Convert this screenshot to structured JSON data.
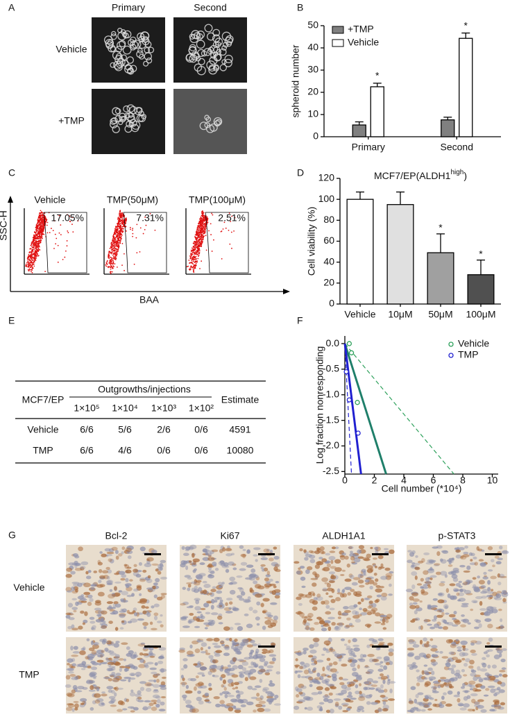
{
  "panel_labels": [
    "A",
    "B",
    "C",
    "D",
    "E",
    "F",
    "G"
  ],
  "spheroid_images": {
    "columns": [
      "Primary",
      "Second"
    ],
    "rows": [
      "Vehicle",
      "+TMP"
    ]
  },
  "flow_cytometry": {
    "plots": [
      {
        "title": "Vehicle",
        "gate": "17.05%"
      },
      {
        "title": "TMP(50μM)",
        "gate": "7.31%"
      },
      {
        "title": "TMP(100μM)",
        "gate": "2.51%"
      }
    ],
    "y_label": "SSC-H",
    "x_label": "BAA"
  },
  "table": {
    "header": [
      "MCF7/EP",
      "Outgrowths/injections",
      "Estimate"
    ],
    "doses": [
      "1×10⁵",
      "1×10⁴",
      "1×10³",
      "1×10²"
    ],
    "rows": [
      [
        "Vehicle",
        "6/6",
        "5/6",
        "2/6",
        "0/6",
        "4591"
      ],
      [
        "TMP",
        "6/6",
        "4/6",
        "0/6",
        "0/6",
        "10080"
      ]
    ]
  },
  "ihc": {
    "columns": [
      "Bcl-2",
      "Ki67",
      "ALDH1A1",
      "p-STAT3"
    ],
    "rows": [
      "Vehicle",
      "TMP"
    ]
  },
  "chart_data": [
    {
      "type": "bar",
      "y_label": "spheroid number",
      "categories": [
        "Primary",
        "Second"
      ],
      "series": [
        {
          "name": "+TMP",
          "color": "#808080",
          "values": [
            5.3,
            7.6
          ],
          "errors": [
            1.4,
            1.2
          ]
        },
        {
          "name": "Vehicle",
          "color": "#ffffff",
          "values": [
            22.5,
            44.3
          ],
          "errors": [
            1.6,
            2.4
          ]
        }
      ],
      "ylim": [
        0,
        50
      ],
      "yticks": [
        0,
        10,
        20,
        30,
        40,
        50
      ],
      "legend": "upper-left",
      "annotations": [
        {
          "text": "*",
          "category": "Primary"
        },
        {
          "text": "*",
          "category": "Second"
        }
      ]
    },
    {
      "type": "bar",
      "title": "MCF7/EP(ALDH1",
      "title_superscript": "high",
      "title_end": ")",
      "y_label": "Cell viability (%)",
      "categories": [
        "Vehicle",
        "10μM",
        "50μM",
        "100μM"
      ],
      "values": [
        100,
        95,
        49,
        28
      ],
      "errors": [
        7,
        12,
        18,
        14
      ],
      "colors": [
        "#ffffff",
        "#e0e0e0",
        "#a0a0a0",
        "#505050"
      ],
      "ylim": [
        0,
        120
      ],
      "yticks": [
        0,
        20,
        40,
        60,
        80,
        100,
        120
      ],
      "annotations": [
        {
          "text": "*",
          "category": "50μM"
        },
        {
          "text": "*",
          "category": "100μM"
        }
      ]
    },
    {
      "type": "scatter",
      "x_label": "Cell number (*10⁴)",
      "y_label": "Log fraction nonresponding",
      "series": [
        {
          "name": "Vehicle",
          "color": "#2ca05a",
          "x": [
            0.3,
            0.45,
            0.85
          ],
          "values": [
            0,
            -0.18,
            -1.15
          ]
        },
        {
          "name": "TMP",
          "color": "#2020d0",
          "x": [
            0.1,
            0.3,
            0.9
          ],
          "values": [
            -0.55,
            -1.1,
            -1.75
          ]
        }
      ],
      "fit_lines": [
        {
          "color": "#2ca05a",
          "dashed": true,
          "x": [
            0,
            7.4
          ],
          "values": [
            0,
            -2.55
          ]
        },
        {
          "color": "#1f7f6a",
          "dashed": false,
          "x": [
            0,
            2.8
          ],
          "values": [
            0,
            -2.55
          ]
        },
        {
          "color": "#2020d0",
          "dashed": false,
          "x": [
            0,
            1.1
          ],
          "values": [
            0,
            -2.55
          ]
        },
        {
          "color": "#2020d0",
          "dashed": true,
          "x": [
            0,
            0.45
          ],
          "values": [
            0,
            -2.55
          ]
        }
      ],
      "xlim": [
        0,
        10.4
      ],
      "xticks": [
        0,
        2,
        4,
        6,
        8,
        10
      ],
      "ylim": [
        -2.55,
        0.15
      ],
      "yticks": [
        {
          "value": 0,
          "label": "0.0"
        },
        -0.5,
        {
          "value": -1,
          "label": "-1.0"
        },
        -1.5,
        {
          "value": -2,
          "label": "-2.0"
        },
        -2.5
      ],
      "legend": "upper-right"
    }
  ]
}
